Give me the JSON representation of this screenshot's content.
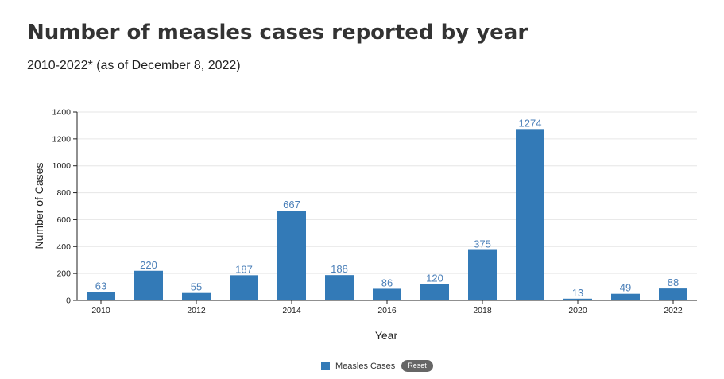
{
  "header": {
    "title": "Number of measles cases reported by year",
    "subtitle": "2010-2022* (as of December 8, 2022)"
  },
  "legend": {
    "series_label": "Measles Cases",
    "reset_label": "Reset"
  },
  "colors": {
    "bar": "#337ab7",
    "data_label": "#4a7fb8",
    "grid": "#e6e6e6",
    "axis": "#222222"
  },
  "chart_data": {
    "type": "bar",
    "title": "Number of measles cases reported by year",
    "subtitle": "2010-2022* (as of December 8, 2022)",
    "xlabel": "Year",
    "ylabel": "Number of Cases",
    "categories": [
      2010,
      2011,
      2012,
      2013,
      2014,
      2015,
      2016,
      2017,
      2018,
      2019,
      2020,
      2021,
      2022
    ],
    "x_tick_labels": [
      "2010",
      "2012",
      "2014",
      "2016",
      "2018",
      "2020",
      "2022"
    ],
    "y_ticks": [
      0,
      200,
      400,
      600,
      800,
      1000,
      1200,
      1400
    ],
    "ylim": [
      0,
      1400
    ],
    "grid": true,
    "legend_position": "bottom-center",
    "series": [
      {
        "name": "Measles Cases",
        "values": [
          63,
          220,
          55,
          187,
          667,
          188,
          86,
          120,
          375,
          1274,
          13,
          49,
          88
        ]
      }
    ]
  }
}
